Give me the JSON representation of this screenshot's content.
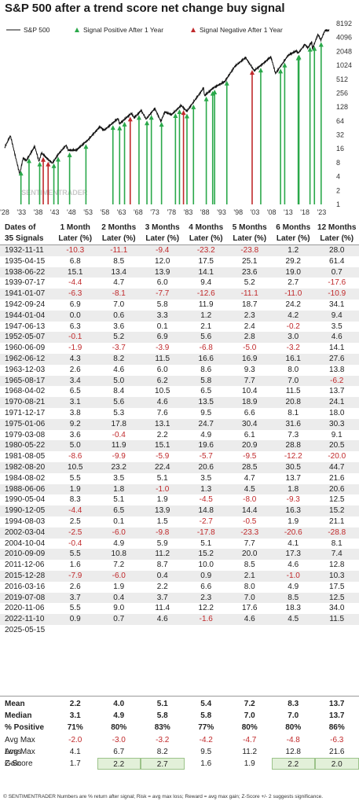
{
  "title": "S&P 500 after a trend score net change buy signal",
  "chart_data": {
    "type": "line",
    "title": "S&P 500 after a trend score net change buy signal",
    "legend": [
      "S&P 500",
      "Signal Positive After 1 Year",
      "Signal Negative After 1 Year"
    ],
    "legend_position": "top-left",
    "y_scale": "log2",
    "y_ticks": [
      "8192",
      "4096",
      "2048",
      "1024",
      "512",
      "256",
      "128",
      "64",
      "32",
      "16",
      "8",
      "4",
      "2",
      "1"
    ],
    "x_ticks": [
      "'28",
      "'33",
      "'38",
      "'43",
      "'48",
      "'53",
      "'58",
      "'63",
      "'68",
      "'73",
      "'78",
      "'83",
      "'88",
      "'93",
      "'98",
      "'03",
      "'08",
      "'13",
      "'18",
      "'23"
    ],
    "xlim": [
      1928,
      2025.5
    ],
    "ylim": [
      1,
      8192
    ],
    "colors": {
      "line": "#111111",
      "positive": "#2aa84a",
      "negative": "#c0292b"
    },
    "watermark": "SENTIMENTRADER",
    "series": [
      {
        "name": "S&P 500",
        "x": [
          1928,
          1929.7,
          1932.5,
          1933.5,
          1934.5,
          1937,
          1938.3,
          1939,
          1941,
          1942.3,
          1944,
          1946.4,
          1947,
          1949.5,
          1953,
          1956.5,
          1957.8,
          1961.9,
          1962.5,
          1966,
          1966.8,
          1968.9,
          1970.4,
          1973,
          1974.8,
          1976,
          1978,
          1980.9,
          1982.6,
          1987.6,
          1987.9,
          1990.5,
          1994,
          1997,
          2000.2,
          2002.8,
          2007.8,
          2009.2,
          2013,
          2015.5,
          2016,
          2018,
          2018.9,
          2020.1,
          2020.2,
          2021.9,
          2022.8,
          2024,
          2025.3
        ],
        "y": [
          17,
          31,
          4.5,
          10,
          9,
          18,
          8.5,
          13,
          9.5,
          7.8,
          12,
          19,
          15,
          15,
          25,
          48,
          40,
          72,
          56,
          94,
          75,
          108,
          70,
          120,
          63,
          100,
          87,
          140,
          103,
          330,
          225,
          330,
          460,
          970,
          1520,
          780,
          1560,
          680,
          1700,
          2100,
          1870,
          2900,
          2450,
          3350,
          2250,
          4800,
          3580,
          5800,
          5900
        ]
      }
    ],
    "signals": [
      {
        "date": "1932-11-11",
        "result": "positive"
      },
      {
        "date": "1935-04-15",
        "result": "positive"
      },
      {
        "date": "1938-06-22",
        "result": "positive"
      },
      {
        "date": "1939-07-17",
        "result": "negative"
      },
      {
        "date": "1941-01-07",
        "result": "negative"
      },
      {
        "date": "1942-09-24",
        "result": "positive"
      },
      {
        "date": "1944-01-04",
        "result": "positive"
      },
      {
        "date": "1947-06-13",
        "result": "positive"
      },
      {
        "date": "1952-05-07",
        "result": "positive"
      },
      {
        "date": "1960-06-09",
        "result": "positive"
      },
      {
        "date": "1962-06-12",
        "result": "positive"
      },
      {
        "date": "1963-12-03",
        "result": "positive"
      },
      {
        "date": "1965-08-17",
        "result": "negative"
      },
      {
        "date": "1968-04-02",
        "result": "positive"
      },
      {
        "date": "1970-08-21",
        "result": "positive"
      },
      {
        "date": "1971-12-17",
        "result": "positive"
      },
      {
        "date": "1975-01-06",
        "result": "positive"
      },
      {
        "date": "1979-03-08",
        "result": "positive"
      },
      {
        "date": "1980-05-22",
        "result": "positive"
      },
      {
        "date": "1981-08-05",
        "result": "negative"
      },
      {
        "date": "1982-08-20",
        "result": "positive"
      },
      {
        "date": "1984-08-02",
        "result": "positive"
      },
      {
        "date": "1988-06-06",
        "result": "positive"
      },
      {
        "date": "1990-05-04",
        "result": "positive"
      },
      {
        "date": "1990-12-05",
        "result": "positive"
      },
      {
        "date": "1994-08-03",
        "result": "positive"
      },
      {
        "date": "2002-03-04",
        "result": "negative"
      },
      {
        "date": "2004-10-04",
        "result": "positive"
      },
      {
        "date": "2010-09-09",
        "result": "positive"
      },
      {
        "date": "2011-12-06",
        "result": "positive"
      },
      {
        "date": "2015-12-28",
        "result": "positive"
      },
      {
        "date": "2016-03-16",
        "result": "positive"
      },
      {
        "date": "2019-07-08",
        "result": "positive"
      },
      {
        "date": "2020-11-06",
        "result": "positive"
      },
      {
        "date": "2022-11-10",
        "result": "positive"
      }
    ]
  },
  "table": {
    "headers": [
      "Dates of 35 Signals",
      "1 Month Later (%)",
      "2 Months Later (%)",
      "3 Months Later (%)",
      "4 Months Later (%)",
      "5 Months Later (%)",
      "6 Months Later (%)",
      "12 Months Later (%)"
    ],
    "header_lines": [
      [
        "Dates of",
        "35 Signals"
      ],
      [
        "1 Month",
        "Later (%)"
      ],
      [
        "2 Months",
        "Later (%)"
      ],
      [
        "3 Months",
        "Later (%)"
      ],
      [
        "4 Months",
        "Later (%)"
      ],
      [
        "5 Months",
        "Later (%)"
      ],
      [
        "6 Months",
        "Later (%)"
      ],
      [
        "12 Months",
        "Later (%)"
      ]
    ],
    "rows": [
      [
        "1932-11-11",
        "-10.3",
        "-11.1",
        "-9.4",
        "-23.2",
        "-23.8",
        "1.2",
        "28.0"
      ],
      [
        "1935-04-15",
        "6.8",
        "8.5",
        "12.0",
        "17.5",
        "25.1",
        "29.2",
        "61.4"
      ],
      [
        "1938-06-22",
        "15.1",
        "13.4",
        "13.9",
        "14.1",
        "23.6",
        "19.0",
        "0.7"
      ],
      [
        "1939-07-17",
        "-4.4",
        "4.7",
        "6.0",
        "9.4",
        "5.2",
        "2.7",
        "-17.6"
      ],
      [
        "1941-01-07",
        "-6.3",
        "-8.1",
        "-7.7",
        "-12.6",
        "-11.1",
        "-11.0",
        "-10.9"
      ],
      [
        "1942-09-24",
        "6.9",
        "7.0",
        "5.8",
        "11.9",
        "18.7",
        "24.2",
        "34.1"
      ],
      [
        "1944-01-04",
        "0.0",
        "0.6",
        "3.3",
        "1.2",
        "2.3",
        "4.2",
        "9.4"
      ],
      [
        "1947-06-13",
        "6.3",
        "3.6",
        "0.1",
        "2.1",
        "2.4",
        "-0.2",
        "3.5"
      ],
      [
        "1952-05-07",
        "-0.1",
        "5.2",
        "6.9",
        "5.6",
        "2.8",
        "3.0",
        "4.6"
      ],
      [
        "1960-06-09",
        "-1.9",
        "-3.7",
        "-3.9",
        "-6.8",
        "-5.0",
        "-3.2",
        "14.1"
      ],
      [
        "1962-06-12",
        "4.3",
        "8.2",
        "11.5",
        "16.6",
        "16.9",
        "16.1",
        "27.6"
      ],
      [
        "1963-12-03",
        "2.6",
        "4.6",
        "6.0",
        "8.6",
        "9.3",
        "8.0",
        "13.8"
      ],
      [
        "1965-08-17",
        "3.4",
        "5.0",
        "6.2",
        "5.8",
        "7.7",
        "7.0",
        "-6.2"
      ],
      [
        "1968-04-02",
        "6.5",
        "8.4",
        "10.5",
        "6.5",
        "10.4",
        "11.5",
        "13.7"
      ],
      [
        "1970-08-21",
        "3.1",
        "5.6",
        "4.6",
        "13.5",
        "18.9",
        "20.8",
        "24.1"
      ],
      [
        "1971-12-17",
        "3.8",
        "5.3",
        "7.6",
        "9.5",
        "6.6",
        "8.1",
        "18.0"
      ],
      [
        "1975-01-06",
        "9.2",
        "17.8",
        "13.1",
        "24.7",
        "30.4",
        "31.6",
        "30.3"
      ],
      [
        "1979-03-08",
        "3.6",
        "-0.4",
        "2.2",
        "4.9",
        "6.1",
        "7.3",
        "9.1"
      ],
      [
        "1980-05-22",
        "5.0",
        "11.9",
        "15.1",
        "19.6",
        "20.9",
        "28.8",
        "20.5"
      ],
      [
        "1981-08-05",
        "-8.6",
        "-9.9",
        "-5.9",
        "-5.7",
        "-9.5",
        "-12.2",
        "-20.0"
      ],
      [
        "1982-08-20",
        "10.5",
        "23.2",
        "22.4",
        "20.6",
        "28.5",
        "30.5",
        "44.7"
      ],
      [
        "1984-08-02",
        "5.5",
        "3.5",
        "5.1",
        "3.5",
        "4.7",
        "13.7",
        "21.6"
      ],
      [
        "1988-06-06",
        "1.9",
        "1.8",
        "-1.0",
        "1.3",
        "4.5",
        "1.8",
        "20.6"
      ],
      [
        "1990-05-04",
        "8.3",
        "5.1",
        "1.9",
        "-4.5",
        "-8.0",
        "-9.3",
        "12.5"
      ],
      [
        "1990-12-05",
        "-4.4",
        "6.5",
        "13.9",
        "14.8",
        "14.4",
        "16.3",
        "15.2"
      ],
      [
        "1994-08-03",
        "2.5",
        "0.1",
        "1.5",
        "-2.7",
        "-0.5",
        "1.9",
        "21.1"
      ],
      [
        "2002-03-04",
        "-2.5",
        "-6.0",
        "-9.8",
        "-17.8",
        "-23.3",
        "-20.6",
        "-28.8"
      ],
      [
        "2004-10-04",
        "-0.4",
        "4.9",
        "5.9",
        "5.1",
        "7.7",
        "4.1",
        "8.1"
      ],
      [
        "2010-09-09",
        "5.5",
        "10.8",
        "11.2",
        "15.2",
        "20.0",
        "17.3",
        "7.4"
      ],
      [
        "2011-12-06",
        "1.6",
        "7.2",
        "8.7",
        "10.0",
        "8.5",
        "4.6",
        "12.8"
      ],
      [
        "2015-12-28",
        "-7.9",
        "-6.0",
        "0.4",
        "0.9",
        "2.1",
        "-1.0",
        "10.3"
      ],
      [
        "2016-03-16",
        "2.6",
        "1.9",
        "2.2",
        "6.6",
        "8.0",
        "4.9",
        "17.5"
      ],
      [
        "2019-07-08",
        "3.7",
        "0.4",
        "3.7",
        "2.3",
        "7.0",
        "8.5",
        "12.5"
      ],
      [
        "2020-11-06",
        "5.5",
        "9.0",
        "11.4",
        "12.2",
        "17.6",
        "18.3",
        "34.0"
      ],
      [
        "2022-11-10",
        "0.9",
        "0.7",
        "4.6",
        "-1.6",
        "4.6",
        "4.5",
        "11.5"
      ],
      [
        "2025-05-15",
        "",
        "",
        "",
        "",
        "",
        "",
        ""
      ]
    ]
  },
  "stats": [
    {
      "label": "Mean",
      "values": [
        "2.2",
        "4.0",
        "5.1",
        "5.4",
        "7.2",
        "8.3",
        "13.7"
      ],
      "bold": true
    },
    {
      "label": "Median",
      "values": [
        "3.1",
        "4.9",
        "5.8",
        "5.8",
        "7.0",
        "7.0",
        "13.7"
      ],
      "bold": true
    },
    {
      "label": "% Positive",
      "values": [
        "71%",
        "80%",
        "83%",
        "77%",
        "80%",
        "80%",
        "86%"
      ],
      "bold": true
    },
    {
      "label": "Avg Max Loss",
      "values": [
        "-2.0",
        "-3.0",
        "-3.2",
        "-4.2",
        "-4.7",
        "-4.8",
        "-6.3"
      ],
      "bold": false
    },
    {
      "label": "Avg Max Gain",
      "values": [
        "4.1",
        "6.7",
        "8.2",
        "9.5",
        "11.2",
        "12.8",
        "21.6"
      ],
      "bold": false
    },
    {
      "label": "Z-Score",
      "values": [
        "1.7",
        "2.2",
        "2.7",
        "1.6",
        "1.9",
        "2.2",
        "2.0"
      ],
      "bold": false,
      "significant": [
        false,
        true,
        true,
        false,
        false,
        true,
        true
      ]
    }
  ],
  "footer": "© SENTIMENTRADER  Numbers are % return after signal; Risk = avg max loss; Reward = avg max gain; Z-Score +/- 2 suggests significance."
}
